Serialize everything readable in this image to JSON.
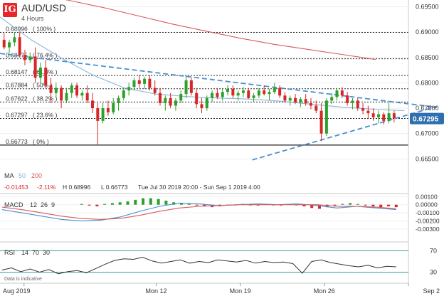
{
  "header": {
    "logo_text": "IG",
    "symbol": "AUD/USD",
    "timeframe": "4 Hours"
  },
  "colors": {
    "bull": "#2ca02c",
    "bear": "#d62728",
    "ma50": "#8ab4d8",
    "ma200": "#d65a5a",
    "trendline": "#4a8fd0",
    "fib": "#222222",
    "price_tag": "#2f6fb0",
    "macd_line": "#4a8fd0",
    "signal_line": "#d65a5a",
    "rsi_line": "#333333",
    "rsi_level": "#3a9fa0"
  },
  "chart_data": [
    {
      "type": "candlestick",
      "panel": "price",
      "ylim": [
        0.6635,
        0.6955
      ],
      "y_ticks": [
        "0.69500",
        "0.69000",
        "0.68500",
        "0.68000",
        "0.67500",
        "0.67000",
        "0.66500"
      ],
      "y_tick_values": [
        0.695,
        0.69,
        0.685,
        0.68,
        0.675,
        0.67,
        0.665
      ],
      "x_ticks": [
        "Aug 2019",
        "Mon 12",
        "Mon 19",
        "Mon 26",
        "Sep 2"
      ],
      "x_tick_dates": [
        "2019-08-01",
        "2019-08-12",
        "2019-08-19",
        "2019-08-26",
        "2019-09-02"
      ],
      "x_range": [
        "2019-07-30",
        "2019-09-02"
      ],
      "last_price": "0.67295",
      "candles": [
        {
          "o": 0.6885,
          "h": 0.6898,
          "l": 0.6866,
          "c": 0.687
        },
        {
          "o": 0.687,
          "h": 0.6885,
          "l": 0.6858,
          "c": 0.688
        },
        {
          "o": 0.688,
          "h": 0.69,
          "l": 0.6872,
          "c": 0.689
        },
        {
          "o": 0.689,
          "h": 0.69,
          "l": 0.685,
          "c": 0.6855
        },
        {
          "o": 0.6855,
          "h": 0.6865,
          "l": 0.6835,
          "c": 0.6845
        },
        {
          "o": 0.6845,
          "h": 0.686,
          "l": 0.684,
          "c": 0.6852
        },
        {
          "o": 0.6852,
          "h": 0.687,
          "l": 0.68,
          "c": 0.681
        },
        {
          "o": 0.681,
          "h": 0.684,
          "l": 0.68,
          "c": 0.683
        },
        {
          "o": 0.683,
          "h": 0.6845,
          "l": 0.679,
          "c": 0.6795
        },
        {
          "o": 0.6795,
          "h": 0.681,
          "l": 0.676,
          "c": 0.678
        },
        {
          "o": 0.678,
          "h": 0.68,
          "l": 0.677,
          "c": 0.679
        },
        {
          "o": 0.679,
          "h": 0.6795,
          "l": 0.675,
          "c": 0.6765
        },
        {
          "o": 0.6765,
          "h": 0.679,
          "l": 0.676,
          "c": 0.678
        },
        {
          "o": 0.678,
          "h": 0.68,
          "l": 0.677,
          "c": 0.6795
        },
        {
          "o": 0.6795,
          "h": 0.68,
          "l": 0.677,
          "c": 0.6775
        },
        {
          "o": 0.6775,
          "h": 0.6785,
          "l": 0.6765,
          "c": 0.678
        },
        {
          "o": 0.678,
          "h": 0.6795,
          "l": 0.676,
          "c": 0.6765
        },
        {
          "o": 0.6765,
          "h": 0.678,
          "l": 0.674,
          "c": 0.675
        },
        {
          "o": 0.675,
          "h": 0.676,
          "l": 0.6677,
          "c": 0.6725
        },
        {
          "o": 0.6725,
          "h": 0.676,
          "l": 0.672,
          "c": 0.675
        },
        {
          "o": 0.675,
          "h": 0.6765,
          "l": 0.6735,
          "c": 0.6742
        },
        {
          "o": 0.6742,
          "h": 0.677,
          "l": 0.6738,
          "c": 0.676
        },
        {
          "o": 0.676,
          "h": 0.6775,
          "l": 0.6745,
          "c": 0.677
        },
        {
          "o": 0.677,
          "h": 0.679,
          "l": 0.6765,
          "c": 0.6785
        },
        {
          "o": 0.6785,
          "h": 0.68,
          "l": 0.6775,
          "c": 0.6792
        },
        {
          "o": 0.6792,
          "h": 0.681,
          "l": 0.6785,
          "c": 0.6805
        },
        {
          "o": 0.6805,
          "h": 0.6815,
          "l": 0.679,
          "c": 0.6798
        },
        {
          "o": 0.6798,
          "h": 0.6812,
          "l": 0.6788,
          "c": 0.6808
        },
        {
          "o": 0.6808,
          "h": 0.6815,
          "l": 0.6785,
          "c": 0.679
        },
        {
          "o": 0.679,
          "h": 0.6805,
          "l": 0.6775,
          "c": 0.678
        },
        {
          "o": 0.678,
          "h": 0.679,
          "l": 0.6755,
          "c": 0.676
        },
        {
          "o": 0.676,
          "h": 0.6775,
          "l": 0.6745,
          "c": 0.677
        },
        {
          "o": 0.677,
          "h": 0.678,
          "l": 0.675,
          "c": 0.6755
        },
        {
          "o": 0.6755,
          "h": 0.677,
          "l": 0.6745,
          "c": 0.6765
        },
        {
          "o": 0.6765,
          "h": 0.6785,
          "l": 0.676,
          "c": 0.6778
        },
        {
          "o": 0.6778,
          "h": 0.6815,
          "l": 0.677,
          "c": 0.6805
        },
        {
          "o": 0.6805,
          "h": 0.681,
          "l": 0.6775,
          "c": 0.678
        },
        {
          "o": 0.678,
          "h": 0.679,
          "l": 0.675,
          "c": 0.6758
        },
        {
          "o": 0.6758,
          "h": 0.677,
          "l": 0.674,
          "c": 0.675
        },
        {
          "o": 0.675,
          "h": 0.6775,
          "l": 0.6745,
          "c": 0.677
        },
        {
          "o": 0.677,
          "h": 0.6785,
          "l": 0.6762,
          "c": 0.678
        },
        {
          "o": 0.678,
          "h": 0.679,
          "l": 0.6768,
          "c": 0.6772
        },
        {
          "o": 0.6772,
          "h": 0.6788,
          "l": 0.6765,
          "c": 0.6782
        },
        {
          "o": 0.6782,
          "h": 0.6795,
          "l": 0.6775,
          "c": 0.6788
        },
        {
          "o": 0.6788,
          "h": 0.6795,
          "l": 0.677,
          "c": 0.6775
        },
        {
          "o": 0.6775,
          "h": 0.6785,
          "l": 0.6765,
          "c": 0.678
        },
        {
          "o": 0.678,
          "h": 0.6792,
          "l": 0.6772,
          "c": 0.6785
        },
        {
          "o": 0.6785,
          "h": 0.679,
          "l": 0.6768,
          "c": 0.677
        },
        {
          "o": 0.677,
          "h": 0.678,
          "l": 0.6762,
          "c": 0.6775
        },
        {
          "o": 0.6775,
          "h": 0.679,
          "l": 0.677,
          "c": 0.6785
        },
        {
          "o": 0.6785,
          "h": 0.6795,
          "l": 0.6775,
          "c": 0.6778
        },
        {
          "o": 0.6778,
          "h": 0.6788,
          "l": 0.6765,
          "c": 0.6782
        },
        {
          "o": 0.6782,
          "h": 0.68,
          "l": 0.6778,
          "c": 0.679
        },
        {
          "o": 0.679,
          "h": 0.6795,
          "l": 0.677,
          "c": 0.6775
        },
        {
          "o": 0.6775,
          "h": 0.6782,
          "l": 0.676,
          "c": 0.6765
        },
        {
          "o": 0.6765,
          "h": 0.6775,
          "l": 0.6755,
          "c": 0.677
        },
        {
          "o": 0.677,
          "h": 0.6778,
          "l": 0.6758,
          "c": 0.6762
        },
        {
          "o": 0.6762,
          "h": 0.6772,
          "l": 0.6752,
          "c": 0.6768
        },
        {
          "o": 0.6768,
          "h": 0.6778,
          "l": 0.6755,
          "c": 0.676
        },
        {
          "o": 0.676,
          "h": 0.677,
          "l": 0.6748,
          "c": 0.6755
        },
        {
          "o": 0.6755,
          "h": 0.6765,
          "l": 0.674,
          "c": 0.6745
        },
        {
          "o": 0.6745,
          "h": 0.676,
          "l": 0.6685,
          "c": 0.67
        },
        {
          "o": 0.67,
          "h": 0.677,
          "l": 0.6695,
          "c": 0.6765
        },
        {
          "o": 0.6765,
          "h": 0.678,
          "l": 0.6758,
          "c": 0.6772
        },
        {
          "o": 0.6772,
          "h": 0.679,
          "l": 0.6765,
          "c": 0.6785
        },
        {
          "o": 0.6785,
          "h": 0.6792,
          "l": 0.677,
          "c": 0.6775
        },
        {
          "o": 0.6775,
          "h": 0.6782,
          "l": 0.6755,
          "c": 0.676
        },
        {
          "o": 0.676,
          "h": 0.677,
          "l": 0.6748,
          "c": 0.6765
        },
        {
          "o": 0.6765,
          "h": 0.677,
          "l": 0.6745,
          "c": 0.675
        },
        {
          "o": 0.675,
          "h": 0.676,
          "l": 0.6738,
          "c": 0.6745
        },
        {
          "o": 0.6745,
          "h": 0.6755,
          "l": 0.673,
          "c": 0.674
        },
        {
          "o": 0.674,
          "h": 0.675,
          "l": 0.6725,
          "c": 0.6732
        },
        {
          "o": 0.6732,
          "h": 0.6745,
          "l": 0.672,
          "c": 0.6738
        },
        {
          "o": 0.6738,
          "h": 0.6742,
          "l": 0.6718,
          "c": 0.6725
        },
        {
          "o": 0.6725,
          "h": 0.676,
          "l": 0.672,
          "c": 0.674
        },
        {
          "o": 0.674,
          "h": 0.6745,
          "l": 0.6722,
          "c": 0.673
        }
      ],
      "moving_averages": [
        {
          "name": "50",
          "values": [
            0.693,
            0.6885,
            0.6848,
            0.6815,
            0.679,
            0.6778,
            0.6773,
            0.677,
            0.6768,
            0.6764,
            0.6758,
            0.6752,
            0.6748,
            0.6745
          ]
        },
        {
          "name": "200",
          "values": [
            0.6975,
            0.6962,
            0.6948,
            0.6932,
            0.6916,
            0.6902,
            0.6888,
            0.6876,
            0.6866,
            0.6856,
            0.6846
          ]
        }
      ],
      "fibonacci": [
        {
          "price": "0.68996",
          "pct": "100%",
          "value": 0.68996
        },
        {
          "price": "0.68475",
          "pct": "76.4%",
          "value": 0.68475
        },
        {
          "price": "0.68147",
          "pct": "61.8%",
          "value": 0.68147
        },
        {
          "price": "0.67884",
          "pct": "50%",
          "value": 0.67884
        },
        {
          "price": "0.67622",
          "pct": "38.2%",
          "value": 0.67622
        },
        {
          "price": "0.67297",
          "pct": "23.6%",
          "value": 0.67297
        },
        {
          "price": "0.66773",
          "pct": "0%",
          "value": 0.66773
        }
      ],
      "trendlines": [
        {
          "from": {
            "date": "2019-07-30",
            "price": 0.6858
          },
          "to": {
            "date": "2019-09-02",
            "price": 0.6756
          }
        },
        {
          "from": {
            "date": "2019-08-20",
            "price": 0.6648
          },
          "to": {
            "date": "2019-09-02",
            "price": 0.6745
          }
        }
      ]
    },
    {
      "type": "bar",
      "panel": "MACD",
      "ylim": [
        -0.0037,
        0.0012
      ],
      "y_ticks": [
        "0.00100",
        "0.00000",
        "-0.00100",
        "-0.00200",
        "-0.00300"
      ],
      "y_tick_values": [
        0.001,
        0,
        -0.001,
        -0.002,
        -0.003
      ],
      "series": [
        {
          "name": "MACD",
          "values": [
            -0.0006,
            -0.001,
            -0.0014,
            -0.0018,
            -0.002,
            -0.0019,
            -0.0015,
            -0.0008,
            -0.0002,
            0.0002,
            0.0001,
            -0.0001,
            0.0,
            0.0001,
            0.0,
            0.0001,
            -0.0001,
            -0.0004,
            -0.0002,
            -0.0004,
            -0.0006
          ]
        },
        {
          "name": "Signal",
          "values": [
            -0.0003,
            -0.0006,
            -0.001,
            -0.0014,
            -0.0017,
            -0.0018,
            -0.0017,
            -0.0013,
            -0.0008,
            -0.0004,
            -0.0002,
            -0.0001,
            0.0,
            0.0,
            0.0,
            0.0,
            0.0,
            -0.0002,
            -0.0002,
            -0.0003,
            -0.0005
          ]
        }
      ],
      "histogram": [
        0.0001,
        -0.0001,
        -0.0002,
        0.0001,
        0.0002,
        0.0003,
        0.0004,
        0.0006,
        0.0008,
        0.0008,
        0.0007,
        0.0005,
        0.0003,
        0.0002,
        0.0001,
        -0.0001,
        -0.0002,
        -0.0003,
        -0.0002,
        -0.0001,
        0.0,
        0.0001,
        0.0,
        -0.0001,
        0.0001,
        0.0,
        -0.0001,
        0.0001,
        0.0,
        -0.0002,
        -0.0004,
        -0.0005,
        -0.0003,
        -0.0001,
        0.0001,
        0.0002,
        0.0001,
        -0.0001,
        -0.0002,
        -0.0003,
        -0.0002,
        -0.0003
      ]
    },
    {
      "type": "line",
      "panel": "RSI",
      "ylim": [
        20,
        80
      ],
      "y_ticks": [
        "70",
        "30"
      ],
      "y_tick_values": [
        70,
        30
      ],
      "series": [
        {
          "name": "RSI",
          "values": [
            34,
            38,
            31,
            36,
            30,
            35,
            27,
            31,
            33,
            29,
            37,
            45,
            52,
            55,
            54,
            58,
            51,
            47,
            50,
            53,
            47,
            50,
            48,
            53,
            51,
            49,
            52,
            47,
            50,
            48,
            49,
            46,
            28,
            50,
            53,
            48,
            45,
            42,
            40,
            43,
            38,
            41,
            40
          ]
        }
      ]
    }
  ],
  "legend": {
    "ma_label": "MA",
    "ma_short": "50",
    "ma_long": "200",
    "change_abs": "-0.01453",
    "change_pct": "-2.11%",
    "high": "H 0.68996",
    "low": "L 0.66773",
    "range": "Tue Jul 30 2019 20:00 - Sun Sep 1 2019 4:00",
    "macd_label": "MACD",
    "macd_params": "12  26  9",
    "rsi_label": "RSI",
    "rsi_params": "14  70  30"
  },
  "footer": {
    "disclaimer": "Data is indicative"
  }
}
